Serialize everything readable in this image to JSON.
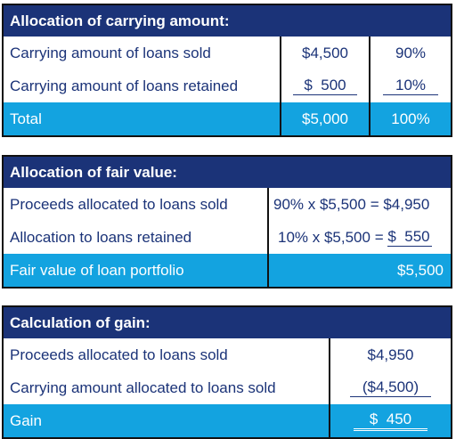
{
  "carrying": {
    "title": "Allocation of carrying amount:",
    "rows": [
      {
        "label": "Carrying amount of loans sold",
        "amount": "$4,500",
        "pct": "90%"
      },
      {
        "label": "Carrying amount of loans retained",
        "amount": "$  500",
        "pct": "10%"
      }
    ],
    "total": {
      "label": "Total",
      "amount": "$5,000",
      "pct": "100%"
    }
  },
  "fair": {
    "title": "Allocation of fair value:",
    "rows": [
      {
        "label": "Proceeds allocated to loans sold",
        "calc": "90% x $5,500 = $4,950"
      },
      {
        "label": "Allocation to loans retained",
        "calc_prefix": "10% x $5,500 = ",
        "calc_value": "$  550"
      }
    ],
    "total": {
      "label": "Fair value of loan portfolio",
      "value": "$5,500"
    }
  },
  "gain": {
    "title": "Calculation of gain:",
    "rows": [
      {
        "label": "Proceeds allocated to loans sold",
        "value": "$4,950"
      },
      {
        "label": "Carrying amount allocated to loans sold",
        "value": "($4,500)"
      }
    ],
    "total": {
      "label": "Gain",
      "value": "$  450"
    }
  }
}
